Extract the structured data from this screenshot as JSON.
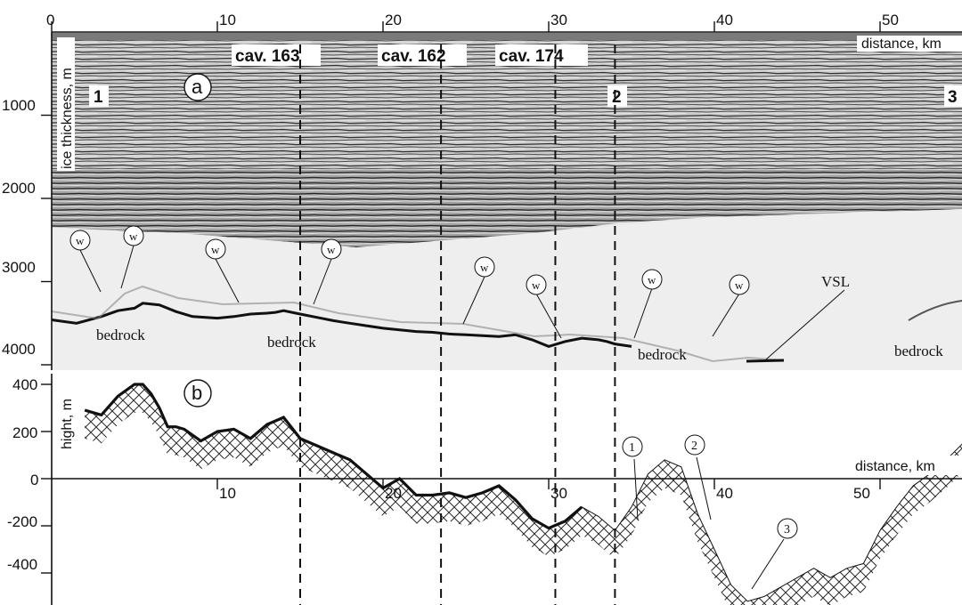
{
  "figure": {
    "panel_a": {
      "label": "a",
      "x_axis": {
        "label": "distance, km",
        "ticks": [
          "0",
          "10",
          "20",
          "30",
          "40",
          "50"
        ]
      },
      "y_axis": {
        "label": "ice thickness, m",
        "ticks": [
          "1000",
          "2000",
          "3000",
          "4000"
        ]
      },
      "cavities": [
        "cav. 163",
        "cav. 162",
        "cav. 174"
      ],
      "segment_markers": [
        "1",
        "2",
        "3"
      ],
      "water_marker": "w",
      "bedrock_label": "bedrock",
      "vsl_label": "VSL"
    },
    "panel_b": {
      "label": "b",
      "x_axis": {
        "label": "distance, km",
        "ticks": [
          "10",
          "20",
          "30",
          "40",
          "50"
        ]
      },
      "y_axis": {
        "label": "hight, m",
        "ticks": [
          "400",
          "200",
          "0",
          "-200",
          "-400"
        ]
      },
      "lake_markers": [
        "1",
        "2",
        "3"
      ]
    },
    "colors": {
      "ink": "#111111",
      "radargram_bg": "#e9e9e9",
      "hatch": "#2a2a2a"
    }
  },
  "chart_data": {
    "type": "line",
    "title": "",
    "panels": [
      {
        "name": "a",
        "xlabel": "distance, km",
        "ylabel": "ice thickness, m",
        "xlim": [
          0,
          55
        ],
        "ylim": [
          4200,
          0
        ],
        "vertical_lines_km": [
          15,
          23.5,
          30.4,
          34
        ],
        "series": [
          {
            "x": [
              0,
              1.5,
              3,
              4,
              5,
              5.5,
              6.5,
              7.5,
              8.5,
              10,
              11,
              12,
              13,
              13.5,
              14,
              15,
              16,
              17,
              18,
              19,
              20,
              21,
              22,
              23,
              24,
              25,
              26,
              27,
              28,
              29,
              30,
              31,
              32,
              33,
              33.5,
              34,
              35
            ],
            "y": [
              3460,
              3500,
              3420,
              3350,
              3320,
              3260,
              3280,
              3360,
              3420,
              3440,
              3420,
              3390,
              3380,
              3370,
              3350,
              3390,
              3430,
              3470,
              3500,
              3530,
              3560,
              3580,
              3600,
              3610,
              3630,
              3640,
              3650,
              3660,
              3640,
              3700,
              3780,
              3720,
              3680,
              3700,
              3720,
              3750,
              3780
            ]
          }
        ]
      },
      {
        "name": "b",
        "xlabel": "distance, km",
        "ylabel": "hight, m",
        "xlim": [
          0,
          55
        ],
        "ylim": [
          -650,
          450
        ],
        "series": [
          {
            "x": [
              2,
              3,
              4,
              5,
              5.5,
              6,
              6.5,
              7,
              7.5,
              8,
              9,
              10,
              11,
              12,
              13,
              14,
              15,
              16,
              17,
              18,
              19,
              20,
              21,
              22,
              23,
              24,
              25,
              26,
              27,
              28,
              29,
              30,
              31,
              32,
              33,
              34,
              35,
              36,
              37,
              38,
              39,
              40,
              41,
              42,
              43,
              44,
              45,
              46,
              47,
              48,
              49,
              50,
              51,
              52,
              53,
              54,
              55
            ],
            "y": [
              290,
              270,
              350,
              400,
              400,
              360,
              300,
              220,
              220,
              210,
              160,
              200,
              210,
              170,
              230,
              260,
              170,
              140,
              110,
              80,
              20,
              -40,
              0,
              -70,
              -70,
              -60,
              -80,
              -60,
              -30,
              -90,
              -170,
              -210,
              -180,
              -120,
              -160,
              -220,
              -120,
              20,
              80,
              50,
              -150,
              -300,
              -450,
              -520,
              -500,
              -460,
              -420,
              -380,
              -420,
              -380,
              -360,
              -220,
              -120,
              -30,
              20,
              80,
              150
            ]
          }
        ]
      }
    ]
  }
}
